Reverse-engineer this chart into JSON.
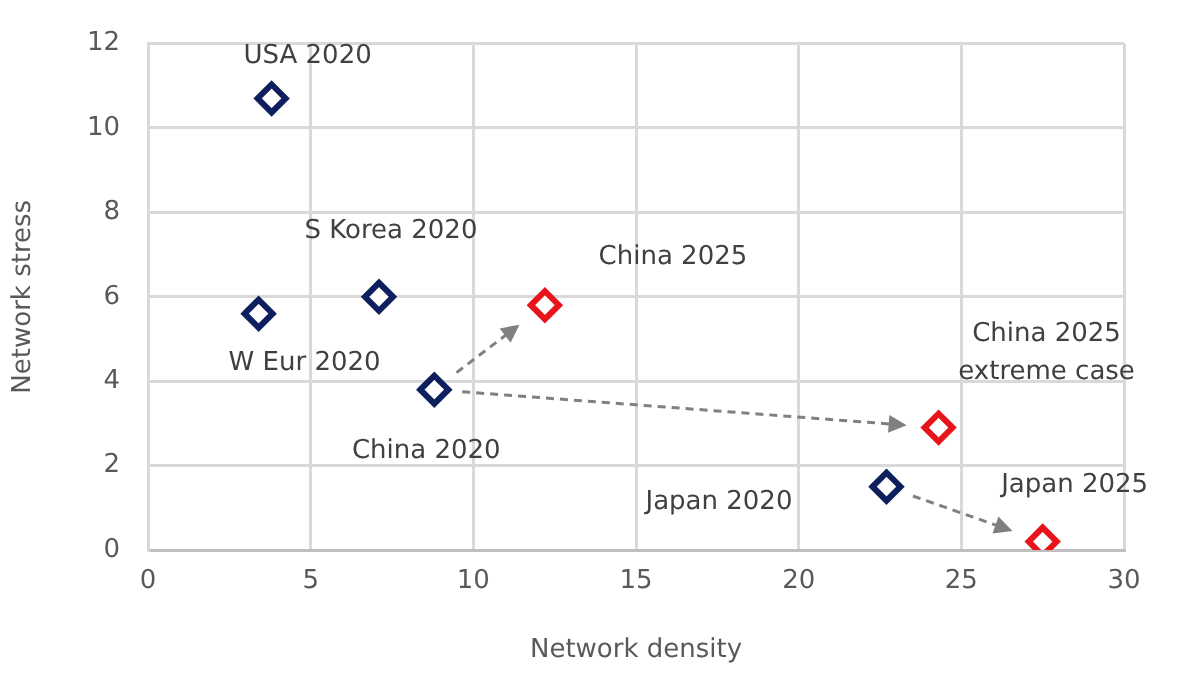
{
  "chart_data": {
    "type": "scatter",
    "xlabel": "Network density",
    "ylabel": "Network stress",
    "xlim": [
      0,
      30
    ],
    "xticks": [
      0,
      5,
      10,
      15,
      20,
      25,
      30
    ],
    "ylim": [
      0,
      12
    ],
    "yticks": [
      0,
      2,
      4,
      6,
      8,
      10,
      12
    ],
    "grid": true,
    "legend": false,
    "marker": "diamond",
    "series": [
      {
        "color": "#0d1f5c",
        "x": [
          3.8,
          3.4,
          7.1,
          8.8,
          22.7
        ],
        "values": [
          10.7,
          5.6,
          6.0,
          3.8,
          1.5
        ]
      },
      {
        "color": "#e8141b",
        "x": [
          12.2,
          24.3,
          27.5
        ],
        "values": [
          5.8,
          2.9,
          0.2
        ]
      }
    ],
    "annotations": [
      {
        "text": "USA 2020",
        "x": 3.8,
        "y": 10.7
      },
      {
        "text": "W Eur 2020",
        "x": 3.4,
        "y": 5.6
      },
      {
        "text": "S Korea 2020",
        "x": 7.1,
        "y": 6.0
      },
      {
        "text": "China 2020",
        "x": 8.8,
        "y": 3.8
      },
      "Japan 2020",
      {
        "text": "China 2025",
        "x": 12.2,
        "y": 5.8
      },
      {
        "text": "China 2025\nextreme case",
        "x": 24.3,
        "y": 2.9
      },
      {
        "text": "Japan 2025",
        "x": 27.5,
        "y": 0.2
      }
    ]
  }
}
